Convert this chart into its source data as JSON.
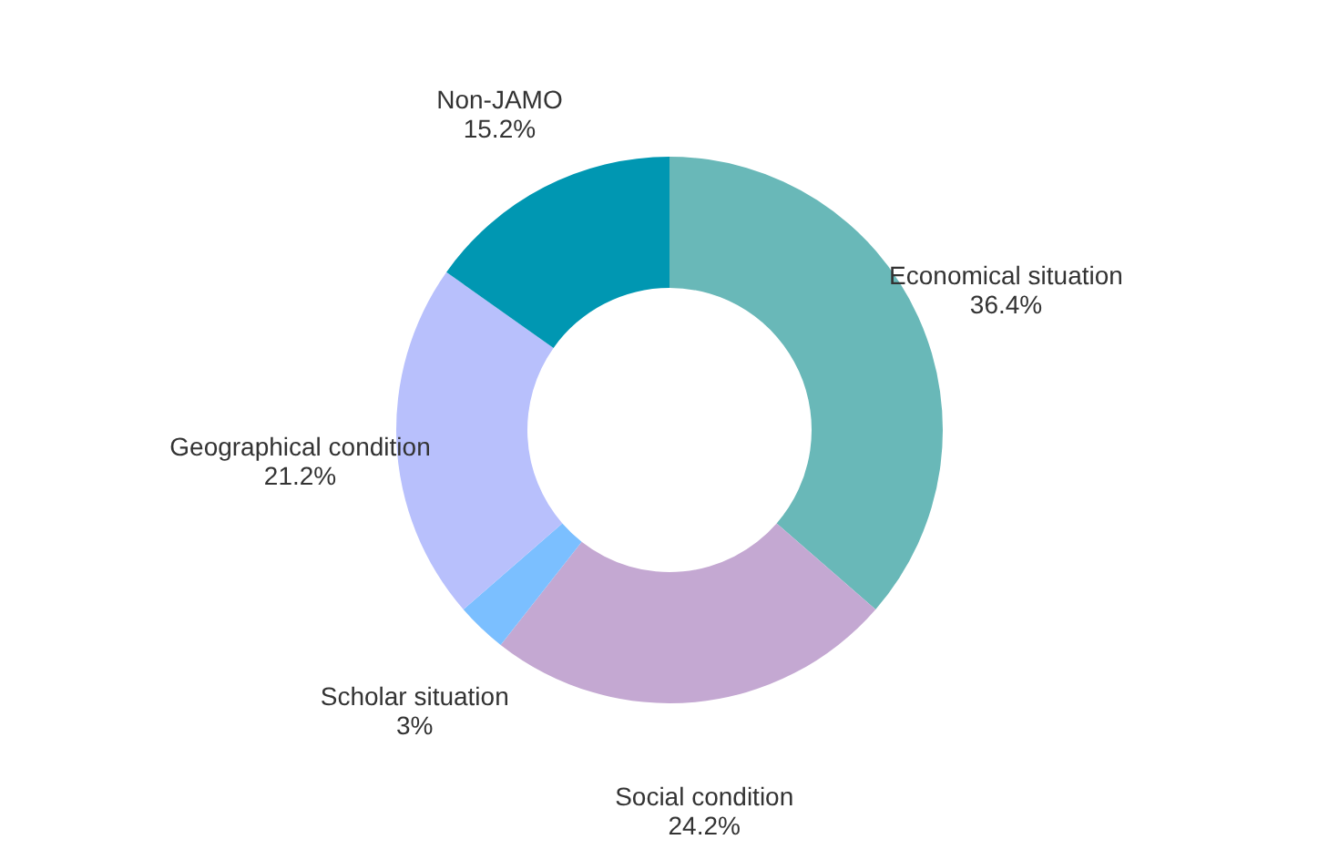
{
  "chart_data": {
    "type": "donut",
    "categories": [
      "Economical situation",
      "Social condition",
      "Scholar situation",
      "Geographical condition",
      "Non-JAMO"
    ],
    "values": [
      36.4,
      24.2,
      3,
      21.2,
      15.2
    ],
    "value_labels": [
      "36.4%",
      "24.2%",
      "3%",
      "21.2%",
      "15.2%"
    ],
    "colors": [
      "#69b8b8",
      "#c4a8d2",
      "#7bbfff",
      "#b8c0fc",
      "#0097b2"
    ]
  }
}
